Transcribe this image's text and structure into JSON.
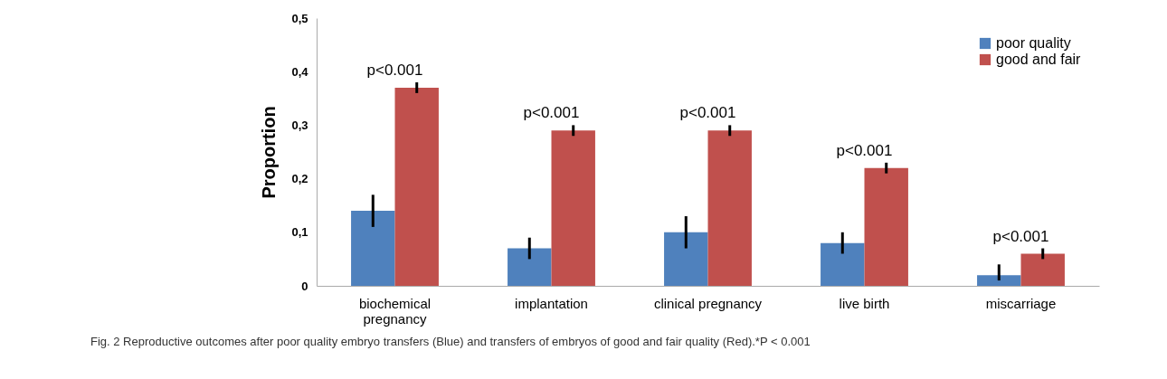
{
  "chart_data": {
    "type": "bar",
    "ylabel": "Proportion",
    "categories": [
      "biochemical pregnancy",
      "implantation",
      "clinical pregnancy",
      "live birth",
      "miscarriage"
    ],
    "series": [
      {
        "name": "poor quality",
        "color": "#4f81bd",
        "values": [
          0.14,
          0.07,
          0.1,
          0.08,
          0.02
        ],
        "errors": [
          0.03,
          0.02,
          0.03,
          0.02,
          [
            0.01,
            0.04
          ]
        ]
      },
      {
        "name": "good and fair",
        "color": "#c0504d",
        "values": [
          0.37,
          0.29,
          0.29,
          0.22,
          0.06
        ],
        "errors": [
          0.01,
          0.01,
          0.01,
          0.01,
          0.01
        ]
      }
    ],
    "ylim": [
      0,
      0.5
    ],
    "yticks": [
      0,
      {
        "value": 0.1,
        "label": "0,1"
      },
      {
        "value": 0.2,
        "label": "0,2"
      },
      {
        "value": 0.3,
        "label": "0,3"
      },
      {
        "value": 0.4,
        "label": "0,4"
      },
      {
        "value": 0.5,
        "label": "0,5"
      }
    ],
    "grid": false,
    "legend": "top right",
    "annotations": [
      "p<0.001",
      "p<0.001",
      "p<0.001",
      "p<0.001",
      "p<0.001",
      "Fig. 2 Reproductive outcomes after poor quality embryo transfers (Blue) and transfers of embryos of good and fair quality (Red).*P < 0.001"
    ]
  }
}
